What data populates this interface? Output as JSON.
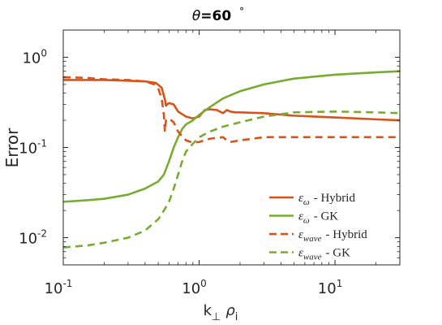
{
  "chart_data": {
    "type": "line",
    "title": {
      "symbol": "θ",
      "value": "=60",
      "unit": "°"
    },
    "xlabel": {
      "main": "k",
      "sub1": "⊥",
      "mid": "ρ",
      "sub2": "i"
    },
    "ylabel": "Error",
    "x_scale": "log",
    "y_scale": "log",
    "xlim": [
      0.1,
      30
    ],
    "ylim": [
      0.005,
      2
    ],
    "x_ticks": [
      {
        "value": 0.1,
        "base": "10",
        "exp": "-1"
      },
      {
        "value": 1,
        "base": "10",
        "exp": "0"
      },
      {
        "value": 10,
        "base": "10",
        "exp": "1"
      }
    ],
    "y_ticks": [
      {
        "value": 0.01,
        "base": "10",
        "exp": "-2"
      },
      {
        "value": 0.1,
        "base": "10",
        "exp": "-1"
      },
      {
        "value": 1,
        "base": "10",
        "exp": "0"
      }
    ],
    "grid": false,
    "legend_position": "bottom-right",
    "series": [
      {
        "name": "ε_ω - Hybrid",
        "legend_symbol": "ε",
        "legend_sub": "ω",
        "legend_text": "- Hybrid",
        "color": "#D95319",
        "dash": "solid",
        "x": [
          0.1,
          0.15,
          0.2,
          0.3,
          0.4,
          0.48,
          0.53,
          0.56,
          0.57,
          0.58,
          0.6,
          0.65,
          0.7,
          0.8,
          0.9,
          1.0,
          1.1,
          1.2,
          1.35,
          1.5,
          1.6,
          1.7,
          1.85,
          2.0,
          3.0,
          5.0,
          10,
          20,
          30
        ],
        "y": [
          0.56,
          0.56,
          0.56,
          0.55,
          0.54,
          0.52,
          0.46,
          0.34,
          0.29,
          0.3,
          0.31,
          0.3,
          0.25,
          0.22,
          0.21,
          0.22,
          0.26,
          0.265,
          0.26,
          0.24,
          0.26,
          0.25,
          0.245,
          0.245,
          0.24,
          0.225,
          0.215,
          0.205,
          0.2
        ]
      },
      {
        "name": "ε_ω - GK",
        "legend_symbol": "ε",
        "legend_sub": "ω",
        "legend_text": "- GK",
        "color": "#77AC30",
        "dash": "solid",
        "x": [
          0.1,
          0.15,
          0.2,
          0.3,
          0.4,
          0.5,
          0.55,
          0.6,
          0.65,
          0.7,
          0.75,
          0.8,
          0.9,
          1.0,
          1.2,
          1.5,
          2.0,
          3.0,
          5.0,
          10,
          20,
          30
        ],
        "y": [
          0.025,
          0.026,
          0.027,
          0.03,
          0.035,
          0.042,
          0.05,
          0.07,
          0.1,
          0.13,
          0.16,
          0.18,
          0.2,
          0.23,
          0.28,
          0.35,
          0.42,
          0.5,
          0.58,
          0.64,
          0.68,
          0.7
        ]
      },
      {
        "name": "ε_wave - Hybrid",
        "legend_symbol": "ε",
        "legend_sub": "wave",
        "legend_text": "- Hybrid",
        "color": "#D95319",
        "dash": "dashed",
        "x": [
          0.1,
          0.15,
          0.2,
          0.3,
          0.4,
          0.47,
          0.5,
          0.53,
          0.55,
          0.56,
          0.57,
          0.6,
          0.65,
          0.7,
          0.8,
          0.9,
          1.0,
          1.2,
          1.5,
          1.6,
          1.7,
          2.0,
          3.0,
          5.0,
          10,
          20,
          30
        ],
        "y": [
          0.6,
          0.59,
          0.57,
          0.56,
          0.54,
          0.5,
          0.45,
          0.35,
          0.23,
          0.15,
          0.2,
          0.21,
          0.19,
          0.15,
          0.12,
          0.113,
          0.115,
          0.125,
          0.13,
          0.12,
          0.115,
          0.12,
          0.13,
          0.13,
          0.13,
          0.13,
          0.13
        ]
      },
      {
        "name": "ε_wave - GK",
        "legend_symbol": "ε",
        "legend_sub": "wave",
        "legend_text": "- GK",
        "color": "#77AC30",
        "dash": "dashed",
        "x": [
          0.1,
          0.15,
          0.2,
          0.3,
          0.4,
          0.5,
          0.55,
          0.6,
          0.65,
          0.7,
          0.75,
          0.8,
          0.9,
          1.0,
          1.2,
          1.5,
          2.0,
          3.0,
          5.0,
          10,
          20,
          30
        ],
        "y": [
          0.0078,
          0.0082,
          0.0088,
          0.01,
          0.012,
          0.016,
          0.02,
          0.025,
          0.035,
          0.05,
          0.07,
          0.09,
          0.11,
          0.13,
          0.15,
          0.17,
          0.19,
          0.22,
          0.245,
          0.25,
          0.245,
          0.24
        ]
      }
    ]
  }
}
